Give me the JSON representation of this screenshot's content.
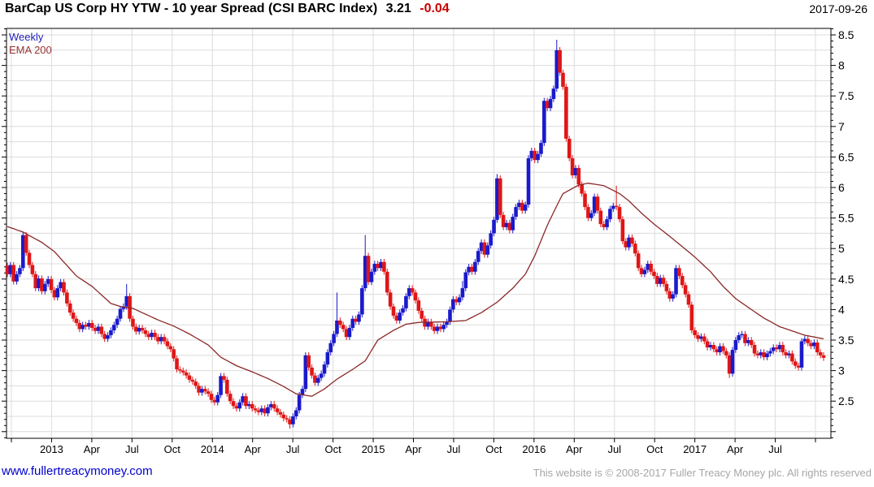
{
  "header": {
    "title": "BarCap US Corp HY YTW - 10 year Spread (CSI BARC Index)",
    "last_value": "3.21",
    "change": "-0.04",
    "date": "2017-09-26"
  },
  "legend": {
    "series_label": "Weekly",
    "overlay_label": "EMA 200"
  },
  "footer": {
    "site": "www.fullertreacymoney.com",
    "copyright": "This website is © 2008-2017 Fuller Treacy Money plc. All rights reserved"
  },
  "colors": {
    "up_candle": "#1a1acc",
    "down_candle": "#e01616",
    "ema_line": "#8b2828",
    "grid": "#dcdcdc",
    "axis": "#000000",
    "title_change": "#cc0000",
    "legend_weekly": "#2222bb",
    "legend_ema": "#993333",
    "footer_site": "#0000cc",
    "footer_copy": "#a6a6a6"
  },
  "chart_data": {
    "type": "candlestick",
    "title": "BarCap US Corp HY YTW - 10 year Spread (CSI BARC Index)",
    "timeframe": "Weekly",
    "overlay": "EMA 200",
    "last_close": 3.21,
    "weekly_change": -0.04,
    "as_of_date": "2017-09-26",
    "y_axis": {
      "min": 1.89,
      "max": 8.61,
      "label_step": 0.5,
      "minor_tick_step": 0.1,
      "gridline_step": 0.25,
      "labels": [
        "2.5",
        "3",
        "3.5",
        "4",
        "4.5",
        "5",
        "5.5",
        "6",
        "6.5",
        "7",
        "7.5",
        "8",
        "8.5"
      ],
      "label_values": [
        2.5,
        3,
        3.5,
        4,
        4.5,
        5,
        5.5,
        6,
        6.5,
        7,
        7.5,
        8,
        8.5
      ]
    },
    "x_axis": {
      "start": "2012-10",
      "end": "2017-09",
      "gridlines": "quarterly",
      "labels": [
        "",
        "2013",
        "Apr",
        "Jul",
        "Oct",
        "2014",
        "Apr",
        "Jul",
        "Oct",
        "2015",
        "Apr",
        "Jul",
        "Oct",
        "2016",
        "Apr",
        "Jul",
        "Oct",
        "2017",
        "Apr",
        "Jul",
        ""
      ]
    },
    "grid": true,
    "legend_position": "top-left-inside",
    "note": "261 weekly candles, Oct 2012 - Sep 2017; values estimated from gridlines. Candles derived as: open = previous close (first open 4.72), high/low = body extreme ±0.05 unless overridden in wick_overrides.",
    "weekly_closes": [
      4.58,
      4.73,
      4.46,
      4.58,
      4.68,
      5.22,
      4.93,
      4.73,
      4.58,
      4.35,
      4.51,
      4.3,
      4.42,
      4.5,
      4.32,
      4.2,
      4.35,
      4.45,
      4.28,
      4.1,
      3.95,
      3.85,
      3.78,
      3.68,
      3.75,
      3.72,
      3.78,
      3.7,
      3.65,
      3.72,
      3.6,
      3.52,
      3.58,
      3.66,
      3.75,
      3.85,
      4.01,
      4.05,
      4.22,
      3.85,
      3.72,
      3.64,
      3.7,
      3.66,
      3.6,
      3.55,
      3.62,
      3.55,
      3.48,
      3.55,
      3.48,
      3.4,
      3.35,
      3.2,
      3.02,
      3.0,
      2.97,
      2.92,
      2.85,
      2.82,
      2.75,
      2.64,
      2.7,
      2.66,
      2.62,
      2.52,
      2.48,
      2.6,
      2.91,
      2.85,
      2.62,
      2.5,
      2.42,
      2.38,
      2.48,
      2.58,
      2.42,
      2.45,
      2.38,
      2.35,
      2.32,
      2.38,
      2.3,
      2.4,
      2.45,
      2.38,
      2.32,
      2.28,
      2.22,
      2.2,
      2.12,
      2.25,
      2.35,
      2.6,
      2.7,
      3.25,
      3.05,
      2.92,
      2.8,
      2.88,
      2.95,
      3.1,
      3.3,
      3.45,
      3.6,
      3.82,
      3.75,
      3.68,
      3.55,
      3.7,
      3.85,
      3.8,
      3.92,
      4.35,
      4.88,
      4.45,
      4.62,
      4.75,
      4.68,
      4.78,
      4.62,
      4.28,
      4.05,
      3.9,
      3.82,
      3.95,
      4.02,
      4.22,
      4.35,
      4.28,
      4.15,
      3.98,
      3.85,
      3.72,
      3.8,
      3.72,
      3.65,
      3.72,
      3.68,
      3.75,
      3.8,
      4.0,
      4.17,
      4.12,
      4.2,
      4.35,
      4.61,
      4.7,
      4.62,
      4.78,
      4.96,
      5.1,
      4.9,
      5.05,
      5.25,
      5.47,
      6.15,
      5.55,
      5.35,
      5.42,
      5.3,
      5.52,
      5.68,
      5.75,
      5.62,
      5.72,
      6.48,
      6.6,
      6.45,
      6.55,
      6.73,
      7.42,
      7.3,
      7.45,
      7.62,
      8.25,
      7.88,
      7.65,
      6.8,
      6.48,
      6.2,
      6.32,
      6.05,
      5.9,
      5.68,
      5.5,
      5.58,
      5.85,
      5.62,
      5.4,
      5.35,
      5.48,
      5.65,
      5.7,
      5.68,
      5.48,
      5.12,
      5.02,
      5.18,
      5.08,
      4.92,
      4.68,
      4.58,
      4.65,
      4.75,
      4.62,
      4.55,
      4.42,
      4.52,
      4.42,
      4.3,
      4.18,
      4.25,
      4.68,
      4.55,
      4.4,
      4.25,
      4.08,
      3.66,
      3.58,
      3.52,
      3.56,
      3.48,
      3.38,
      3.42,
      3.35,
      3.3,
      3.4,
      3.32,
      3.25,
      2.95,
      3.34,
      3.5,
      3.58,
      3.6,
      3.45,
      3.5,
      3.42,
      3.28,
      3.25,
      3.3,
      3.22,
      3.28,
      3.32,
      3.38,
      3.35,
      3.42,
      3.3,
      3.25,
      3.28,
      3.15,
      3.08,
      3.05,
      3.48,
      3.52,
      3.45,
      3.4,
      3.46,
      3.3,
      3.25,
      3.21
    ],
    "first_open": 4.72,
    "wick_overrides": {
      "5": {
        "high": 5.26
      },
      "38": {
        "high": 4.42
      },
      "90": {
        "low": 2.05
      },
      "105": {
        "high": 4.28
      },
      "114": {
        "high": 5.22
      },
      "145": {
        "high": 4.47
      },
      "156": {
        "high": 6.22
      },
      "175": {
        "high": 8.42
      },
      "194": {
        "high": 6.03
      },
      "230": {
        "low": 2.88
      }
    },
    "ema_points": [
      [
        0,
        5.36
      ],
      [
        5,
        5.27
      ],
      [
        11,
        5.1
      ],
      [
        15,
        4.95
      ],
      [
        22,
        4.55
      ],
      [
        27,
        4.38
      ],
      [
        33,
        4.1
      ],
      [
        36,
        4.05
      ],
      [
        40,
        4.02
      ],
      [
        48,
        3.83
      ],
      [
        53,
        3.73
      ],
      [
        58,
        3.6
      ],
      [
        64,
        3.42
      ],
      [
        68,
        3.22
      ],
      [
        73,
        3.08
      ],
      [
        78,
        2.98
      ],
      [
        83,
        2.87
      ],
      [
        88,
        2.74
      ],
      [
        92,
        2.62
      ],
      [
        97,
        2.58
      ],
      [
        101,
        2.7
      ],
      [
        105,
        2.86
      ],
      [
        110,
        3.02
      ],
      [
        114,
        3.16
      ],
      [
        118,
        3.5
      ],
      [
        123,
        3.66
      ],
      [
        127,
        3.76
      ],
      [
        131,
        3.79
      ],
      [
        140,
        3.8
      ],
      [
        146,
        3.82
      ],
      [
        151,
        3.95
      ],
      [
        156,
        4.12
      ],
      [
        161,
        4.35
      ],
      [
        165,
        4.58
      ],
      [
        168,
        4.88
      ],
      [
        172,
        5.38
      ],
      [
        175,
        5.7
      ],
      [
        177,
        5.9
      ],
      [
        182,
        6.04
      ],
      [
        185,
        6.07
      ],
      [
        190,
        6.03
      ],
      [
        195,
        5.9
      ],
      [
        198,
        5.78
      ],
      [
        202,
        5.58
      ],
      [
        206,
        5.4
      ],
      [
        211,
        5.2
      ],
      [
        215,
        5.03
      ],
      [
        219,
        4.86
      ],
      [
        224,
        4.62
      ],
      [
        228,
        4.38
      ],
      [
        232,
        4.18
      ],
      [
        237,
        4.0
      ],
      [
        241,
        3.86
      ],
      [
        246,
        3.72
      ],
      [
        250,
        3.65
      ],
      [
        254,
        3.58
      ],
      [
        258,
        3.54
      ],
      [
        260,
        3.52
      ]
    ]
  }
}
